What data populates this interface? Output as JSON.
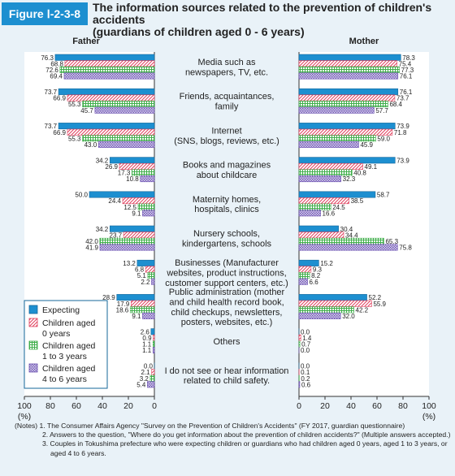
{
  "figure_label": "Figure Ⅰ-2-3-8",
  "title_lines": [
    "The information sources related to the prevention of children's accidents",
    "(guardians of children aged 0 - 6 years)"
  ],
  "chart_data": {
    "type": "bar",
    "orientation": "horizontal-butterfly",
    "panels": [
      "Father",
      "Mother"
    ],
    "xlim": [
      0,
      100
    ],
    "ticks": [
      "100",
      "80",
      "60",
      "40",
      "20",
      "0",
      "20",
      "40",
      "60",
      "80",
      "100"
    ],
    "unit_label": "(%)",
    "categories": [
      [
        "Media such as",
        "newspapers, TV, etc."
      ],
      [
        "Friends, acquaintances,",
        "family"
      ],
      [
        "Internet",
        "(SNS, blogs, reviews, etc.)"
      ],
      [
        "Books and magazines",
        "about childcare"
      ],
      [
        "Maternity homes,",
        "hospitals, clinics"
      ],
      [
        "Nursery schools,",
        "kindergartens, schools"
      ],
      [
        "Businesses (Manufacturer",
        "websites, product instructions,",
        "customer support centers, etc.)"
      ],
      [
        "Public administration (mother",
        "and child health record book,",
        "child checkups, newsletters,",
        "posters, websites, etc.)"
      ],
      [
        "Others"
      ],
      [
        "I do not see or hear information",
        "related to child safety."
      ]
    ],
    "series": [
      {
        "name": "Expecting",
        "color": "#1d8fd0",
        "pattern": "solid",
        "father": [
          76.3,
          73.7,
          73.7,
          34.2,
          50.0,
          34.2,
          13.2,
          28.9,
          2.6,
          0.0
        ],
        "mother": [
          78.3,
          76.1,
          73.9,
          73.9,
          58.7,
          30.4,
          15.2,
          52.2,
          0.0,
          0.0
        ]
      },
      {
        "name": "Children aged 0 years",
        "color": "#e0405e",
        "pattern": "diagonal",
        "father": [
          68.8,
          66.9,
          66.9,
          26.9,
          24.4,
          23.7,
          6.8,
          17.9,
          0.9,
          2.1
        ],
        "mother": [
          75.4,
          73.7,
          71.8,
          49.1,
          38.5,
          34.4,
          9.3,
          55.9,
          1.4,
          0.1
        ]
      },
      {
        "name": "Children aged 1 to 3 years",
        "color": "#3fae4a",
        "pattern": "grid",
        "father": [
          72.6,
          55.3,
          55.3,
          17.3,
          12.5,
          42.0,
          5.1,
          18.6,
          1.1,
          3.2
        ],
        "mother": [
          77.3,
          68.4,
          59.0,
          40.8,
          24.5,
          65.3,
          8.2,
          42.2,
          0.7,
          0.2
        ]
      },
      {
        "name": "Children aged 4 to 6 years",
        "color": "#7a5db8",
        "pattern": "dots",
        "father": [
          69.4,
          45.7,
          43.0,
          10.8,
          9.1,
          41.9,
          2.2,
          9.1,
          1.1,
          5.4
        ],
        "mother": [
          76.1,
          57.7,
          45.9,
          32.3,
          16.6,
          75.8,
          6.6,
          32.0,
          0.0,
          0.6
        ]
      }
    ],
    "legend": {
      "placement": "left-lower",
      "entries": [
        [
          "Expecting"
        ],
        [
          "Children aged",
          "0 years"
        ],
        [
          "Children aged",
          "1 to 3 years"
        ],
        [
          "Children aged",
          "4 to 6 years"
        ]
      ]
    }
  },
  "notes": [
    "(Notes) 1. The Consumer Affairs Agency \"Survey on the Prevention of Children's Accidents\" (FY 2017, guardian questionnaire)",
    "2. Answers to the question, \"Where do you get information about the prevention of children accidents?\" (Multiple answers accepted.)",
    "3. Couples in Tokushima prefecture who were expecting children or guardians who had children aged 0 years, aged 1 to 3 years, or aged 4 to 6 years."
  ]
}
